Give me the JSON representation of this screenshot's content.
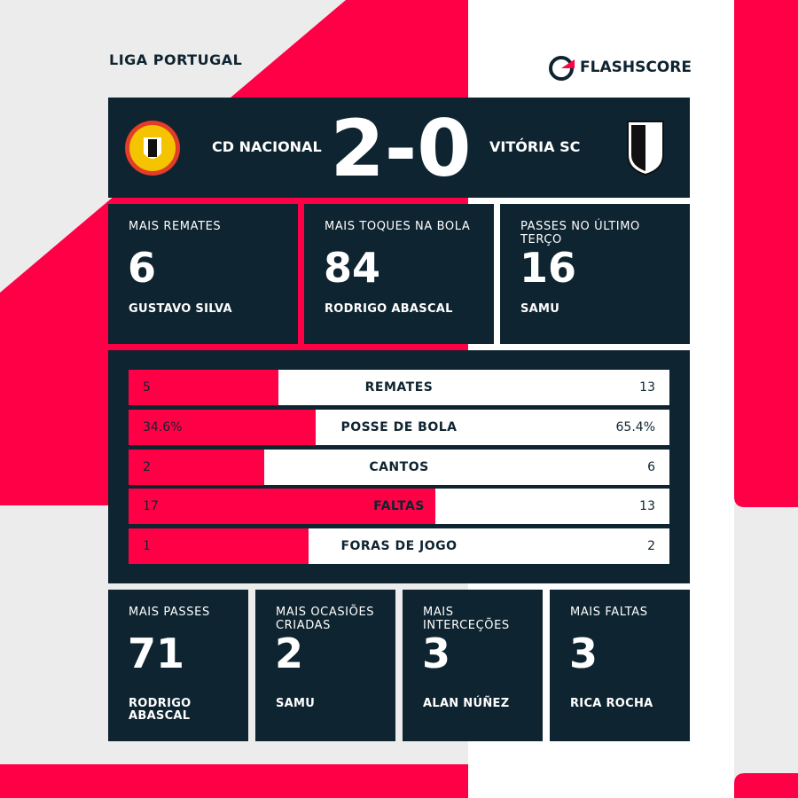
{
  "header": {
    "league": "LIGA PORTUGAL",
    "brand": "FLASHSCORE"
  },
  "match": {
    "home": "CD NACIONAL",
    "score": "2-0",
    "away": "VITÓRIA SC"
  },
  "top_leaders": [
    {
      "label": "MAIS REMATES",
      "value": 6,
      "player": "GUSTAVO SILVA"
    },
    {
      "label": "MAIS TOQUES NA BOLA",
      "value": 84,
      "player": "RODRIGO ABASCAL"
    },
    {
      "label": "PASSES NO ÚLTIMO TERÇO",
      "value": 16,
      "player": "SAMU"
    }
  ],
  "stats": [
    {
      "name": "REMATES",
      "home": 5,
      "away": 13
    },
    {
      "name": "POSSE DE BOLA",
      "home": 34.6,
      "away": 65.4,
      "home_label": "34.6%",
      "away_label": "65.4%"
    },
    {
      "name": "CANTOS",
      "home": 2,
      "away": 6
    },
    {
      "name": "FALTAS",
      "home": 17,
      "away": 13
    },
    {
      "name": "FORAS DE JOGO",
      "home": 1,
      "away": 2
    }
  ],
  "bottom_leaders": [
    {
      "label": "MAIS PASSES",
      "value": 71,
      "player": "RODRIGO ABASCAL"
    },
    {
      "label": "MAIS OCASIÕES CRIADAS",
      "value": 2,
      "player": "SAMU"
    },
    {
      "label": "MAIS INTERCEÇÕES",
      "value": 3,
      "player": "ALAN NÚÑEZ"
    },
    {
      "label": "MAIS FALTAS",
      "value": 3,
      "player": "RICA ROCHA"
    }
  ]
}
